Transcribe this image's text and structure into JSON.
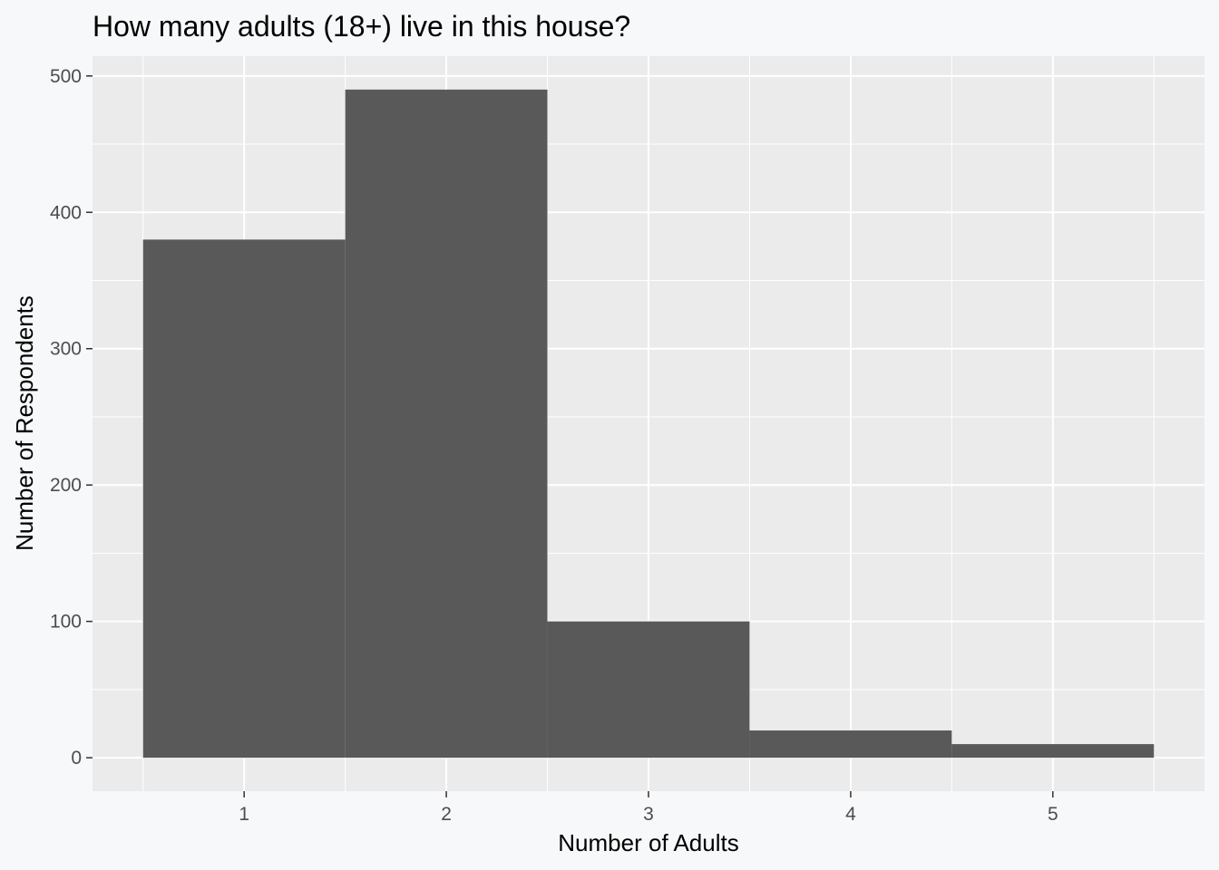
{
  "chart_data": {
    "type": "bar",
    "title": "How many adults (18+) live in this house?",
    "xlabel": "Number of Adults",
    "ylabel": "Number of Respondents",
    "categories": [
      "1",
      "2",
      "3",
      "4",
      "5"
    ],
    "x": [
      1,
      2,
      3,
      4,
      5
    ],
    "values": [
      380,
      490,
      100,
      20,
      10
    ],
    "xlim": [
      0.25,
      5.75
    ],
    "ylim": [
      -24.5,
      514.5
    ],
    "x_ticks": [
      1,
      2,
      3,
      4,
      5
    ],
    "y_ticks": [
      0,
      100,
      200,
      300,
      400,
      500
    ],
    "bar_width": 1,
    "grid": true,
    "legend": "none",
    "colors": {
      "bar": "#595959",
      "panel": "#ebebeb",
      "grid": "#ffffff",
      "background": "#f7f8f9"
    }
  }
}
